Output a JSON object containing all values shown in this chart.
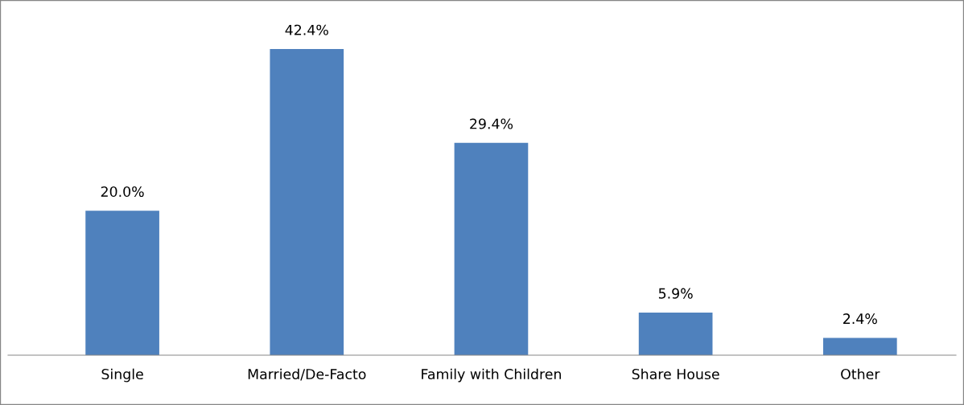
{
  "chart_data": {
    "type": "bar",
    "categories": [
      "Single",
      "Married/De-Facto",
      "Family with Children",
      "Share House",
      "Other"
    ],
    "values": [
      20.0,
      42.4,
      29.4,
      5.9,
      2.4
    ],
    "value_labels": [
      "20.0%",
      "42.4%",
      "29.4%",
      "5.9%",
      "2.4%"
    ],
    "color": "#4f81bd",
    "tick_labels": "x",
    "grid": false,
    "legend": false
  }
}
